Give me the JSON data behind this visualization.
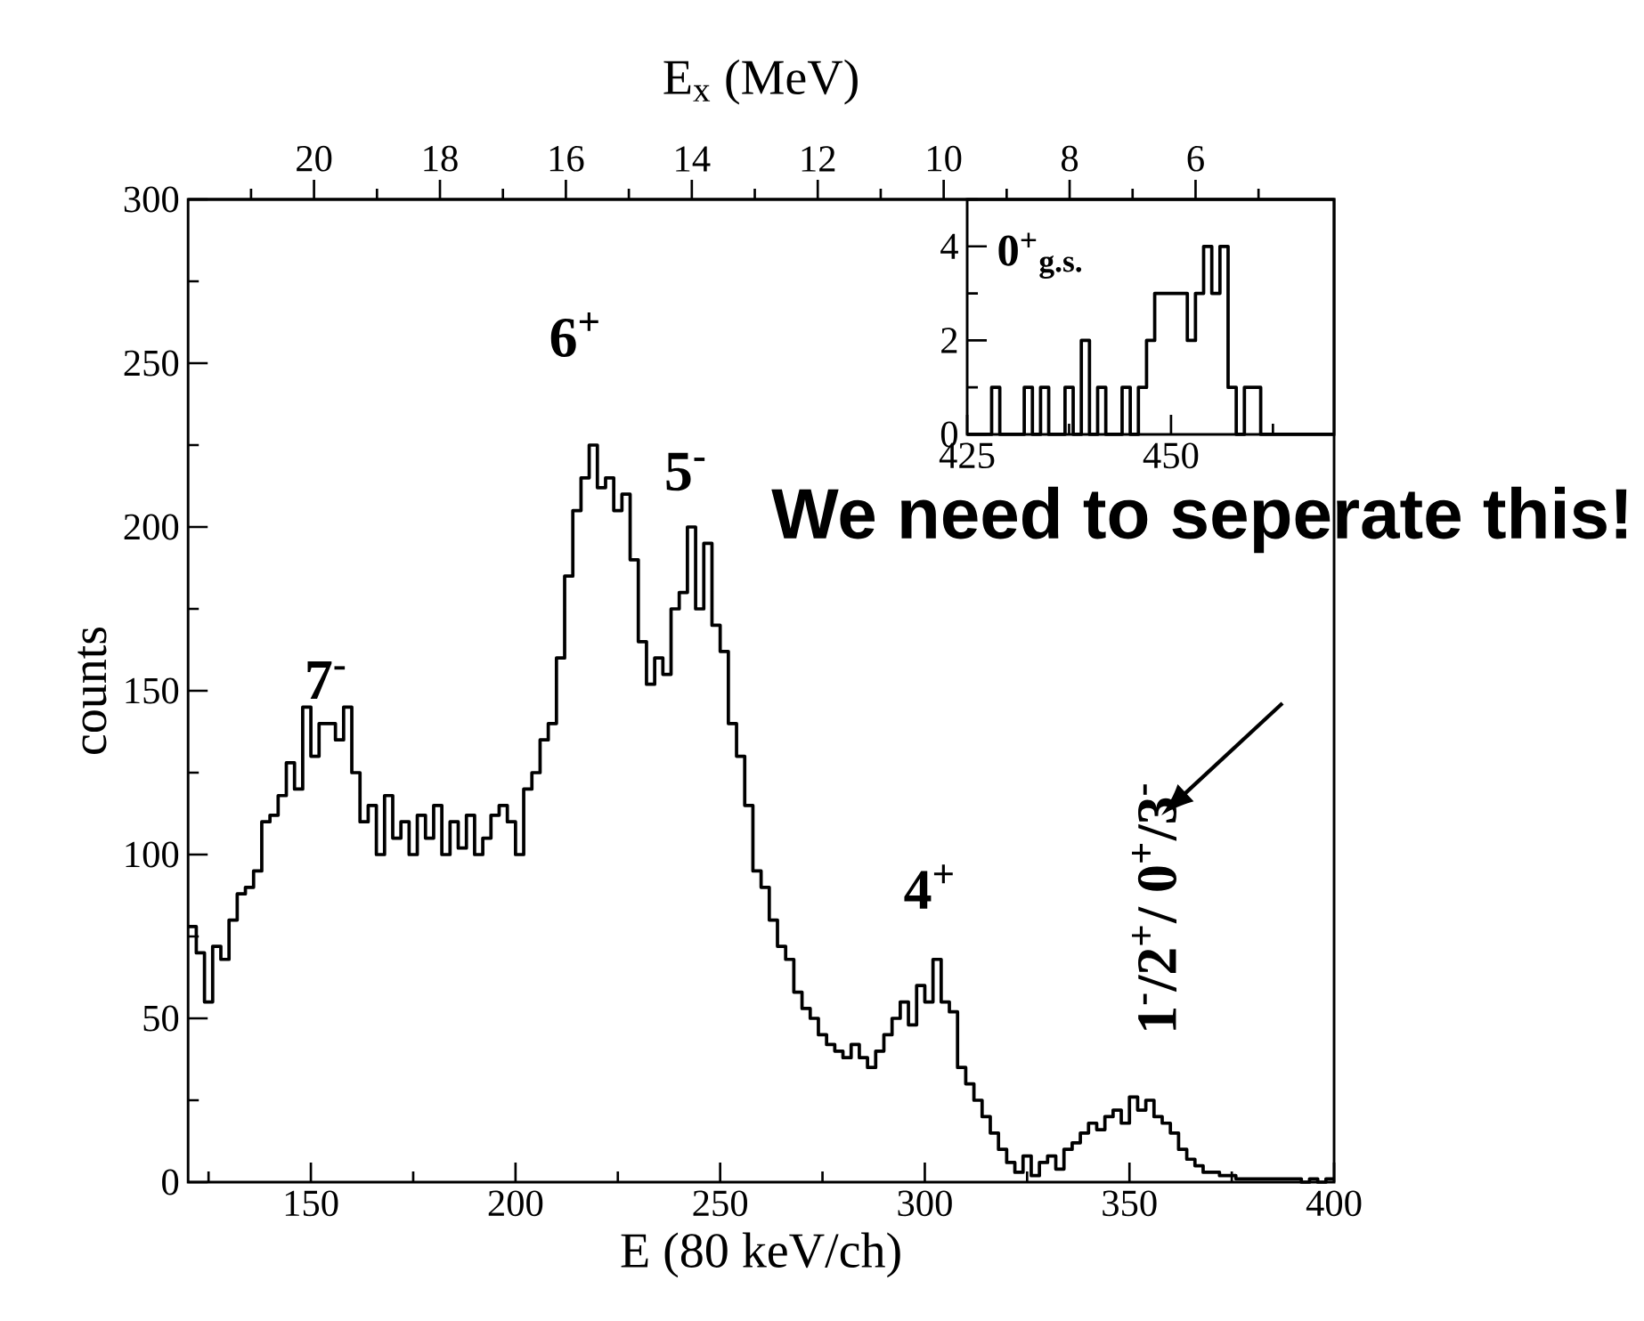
{
  "chart_data": [
    {
      "type": "histogram",
      "color": "#000000",
      "bins": [
        120,
        122,
        124,
        126,
        128,
        130,
        132,
        134,
        136,
        138,
        140,
        142,
        144,
        146,
        148,
        150,
        152,
        154,
        156,
        158,
        160,
        162,
        164,
        166,
        168,
        170,
        172,
        174,
        176,
        178,
        180,
        182,
        184,
        186,
        188,
        190,
        192,
        194,
        196,
        198,
        200,
        202,
        204,
        206,
        208,
        210,
        212,
        214,
        216,
        218,
        220,
        222,
        224,
        226,
        228,
        230,
        232,
        234,
        236,
        238,
        240,
        242,
        244,
        246,
        248,
        250,
        252,
        254,
        256,
        258,
        260,
        262,
        264,
        266,
        268,
        270,
        272,
        274,
        276,
        278,
        280,
        282,
        284,
        286,
        288,
        290,
        292,
        294,
        296,
        298,
        300,
        302,
        304,
        306,
        308,
        310,
        312,
        314,
        316,
        318,
        320,
        322,
        324,
        326,
        328,
        330,
        332,
        334,
        336,
        338,
        340,
        342,
        344,
        346,
        348,
        350,
        352,
        354,
        356,
        358,
        360,
        362,
        364,
        366,
        368,
        370,
        372,
        374,
        376,
        378,
        380,
        382,
        384,
        386,
        388,
        390,
        392,
        394,
        396,
        398,
        400
      ],
      "values": [
        78,
        70,
        55,
        72,
        68,
        80,
        88,
        90,
        95,
        110,
        112,
        118,
        128,
        120,
        145,
        130,
        140,
        140,
        135,
        145,
        125,
        110,
        115,
        100,
        118,
        105,
        110,
        100,
        112,
        105,
        115,
        100,
        110,
        102,
        112,
        100,
        105,
        112,
        115,
        110,
        100,
        120,
        125,
        135,
        140,
        160,
        185,
        205,
        215,
        225,
        212,
        215,
        205,
        210,
        190,
        165,
        152,
        160,
        155,
        175,
        180,
        200,
        175,
        195,
        170,
        162,
        140,
        130,
        115,
        95,
        90,
        80,
        72,
        68,
        58,
        53,
        50,
        45,
        42,
        40,
        38,
        42,
        38,
        35,
        40,
        45,
        50,
        55,
        48,
        60,
        55,
        68,
        55,
        52,
        35,
        30,
        25,
        20,
        15,
        10,
        6,
        3,
        8,
        2,
        6,
        8,
        4,
        10,
        12,
        15,
        18,
        16,
        20,
        22,
        18,
        26,
        22,
        25,
        20,
        18,
        15,
        10,
        7,
        5,
        3,
        3,
        2,
        2,
        1,
        1,
        1,
        1,
        1,
        1,
        1,
        1,
        0,
        1,
        0,
        1
      ],
      "xlim": [
        120,
        400
      ],
      "ylim": [
        0,
        300
      ],
      "xticks": [
        150,
        200,
        250,
        300,
        350,
        400
      ],
      "yticks": [
        0,
        50,
        100,
        150,
        200,
        250,
        300
      ],
      "x2lim": [
        22,
        3.8
      ],
      "x2ticks": [
        20,
        18,
        16,
        14,
        12,
        10,
        8,
        6
      ],
      "x2label": "E$_{x}$ (MeV)",
      "xlabel": "E (80 keV/ch)",
      "ylabel": "counts",
      "annotations": [
        "7$^{-}$",
        "6$^{+}$",
        "5$^{-}$",
        "4$^{+}$",
        "1$^{-}$/2$^{+}$/ 0$^{+}$/3$^{-}$",
        "We need to seperate this!"
      ]
    },
    {
      "type": "histogram",
      "color": "#000000",
      "bins": [
        425,
        426,
        427,
        428,
        429,
        430,
        431,
        432,
        433,
        434,
        435,
        436,
        437,
        438,
        439,
        440,
        441,
        442,
        443,
        444,
        445,
        446,
        447,
        448,
        449,
        450,
        451,
        452,
        453,
        454,
        455,
        456,
        457,
        458,
        459,
        460,
        461,
        462,
        463,
        464,
        465,
        466,
        467,
        468,
        469,
        470
      ],
      "values": [
        0,
        0,
        0,
        1,
        0,
        0,
        0,
        1,
        0,
        1,
        0,
        0,
        1,
        0,
        2,
        0,
        1,
        0,
        0,
        1,
        0,
        1,
        2,
        3,
        3,
        3,
        3,
        2,
        3,
        4,
        3,
        4,
        1,
        0,
        1,
        1,
        0,
        0,
        0,
        0,
        0,
        0,
        0,
        0,
        0
      ],
      "xlim": [
        425,
        470
      ],
      "ylim": [
        0,
        5
      ],
      "xticks": [
        425,
        450
      ],
      "yticks": [
        0,
        2,
        4
      ],
      "annotations": [
        "0$^{+}$$_{g.s.}$"
      ]
    }
  ]
}
